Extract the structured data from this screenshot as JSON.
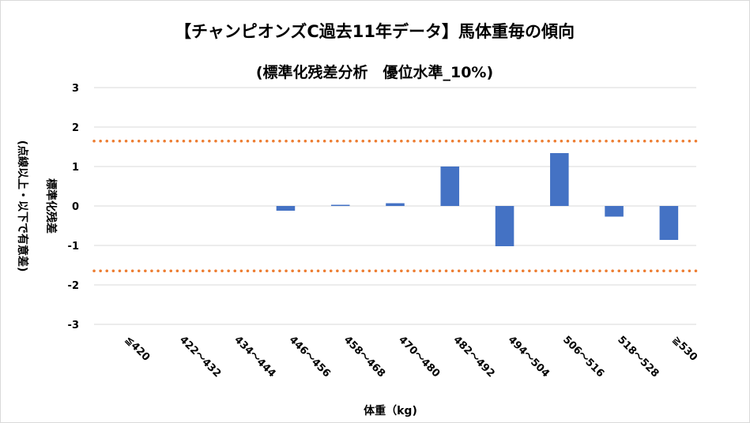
{
  "chart_data": {
    "type": "bar",
    "title": "【チャンピオンズC過去11年データ】馬体重毎の傾向",
    "subtitle": "(標準化残差分析　優位水準_10%)",
    "xlabel": "体重（kg)",
    "ylabel": "標準化残差",
    "ylabel_note": "(点線以上・以下で有意差)",
    "categories": [
      "≦420",
      "422～432",
      "434～444",
      "446～456",
      "458～468",
      "470～480",
      "482～492",
      "494～504",
      "506～516",
      "518～528",
      "≧530"
    ],
    "values": [
      0,
      0,
      0,
      -0.12,
      0.03,
      0.07,
      1.0,
      -1.02,
      1.34,
      -0.27,
      -0.86
    ],
    "ylim": [
      -3,
      3
    ],
    "yticks": [
      3,
      2,
      1,
      0,
      -1,
      -2,
      -3
    ],
    "threshold": 1.645,
    "grid": true,
    "colors": {
      "bar": "#4472c4",
      "threshold": "#ed7d31",
      "grid": "#d9d9d9"
    }
  }
}
